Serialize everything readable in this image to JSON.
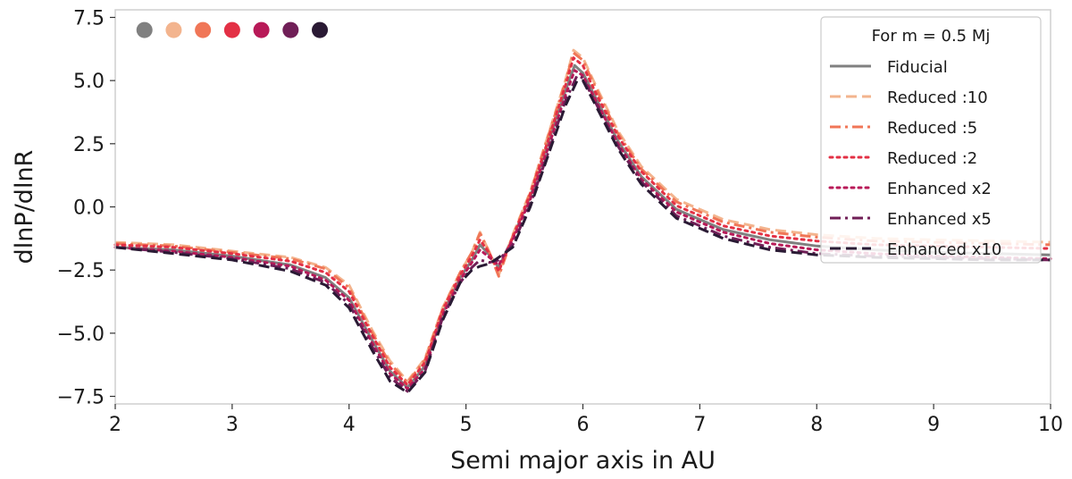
{
  "chart_data": {
    "type": "line",
    "title": "",
    "xlabel": "Semi major axis in AU",
    "ylabel": "dlnP/dlnR",
    "xlim": [
      2,
      10
    ],
    "ylim": [
      -7.8,
      7.8
    ],
    "xticks": [
      2,
      3,
      4,
      5,
      6,
      7,
      8,
      9,
      10
    ],
    "yticks": [
      -7.5,
      -5.0,
      -2.5,
      0.0,
      2.5,
      5.0,
      7.5
    ],
    "xtick_labels": [
      "2",
      "3",
      "4",
      "5",
      "6",
      "7",
      "8",
      "9",
      "10"
    ],
    "ytick_labels": [
      "−7.5",
      "−5.0",
      "−2.5",
      "0.0",
      "2.5",
      "5.0",
      "7.5"
    ],
    "grid": false,
    "legend": {
      "title": "For m = 0.5 Mj",
      "placement": "top-right"
    },
    "markers": {
      "y": 7.0,
      "x": [
        2.25,
        2.5,
        2.75,
        3.0,
        3.25,
        3.5,
        3.75
      ],
      "colors": [
        "#808080",
        "#f3b48e",
        "#f07657",
        "#e33045",
        "#b81a58",
        "#701f57",
        "#2a1a34"
      ]
    },
    "series": [
      {
        "name": "Fiducial",
        "color": "#808080",
        "dash": "solid",
        "x": [
          2.0,
          2.5,
          3.0,
          3.5,
          3.8,
          4.0,
          4.2,
          4.35,
          4.5,
          4.65,
          4.8,
          4.95,
          5.05,
          5.12,
          5.2,
          5.28,
          5.4,
          5.55,
          5.7,
          5.85,
          5.93,
          6.0,
          6.1,
          6.3,
          6.5,
          6.8,
          7.2,
          7.6,
          8.0,
          8.5,
          9.0,
          9.5,
          10.0
        ],
        "y": [
          -1.6,
          -1.7,
          -1.95,
          -2.3,
          -2.8,
          -3.6,
          -5.3,
          -6.5,
          -7.15,
          -6.3,
          -4.2,
          -2.8,
          -2.1,
          -1.5,
          -1.9,
          -2.4,
          -1.2,
          0.4,
          2.5,
          4.6,
          5.6,
          5.3,
          4.4,
          2.6,
          1.2,
          -0.1,
          -0.9,
          -1.3,
          -1.55,
          -1.7,
          -1.8,
          -1.85,
          -1.9
        ]
      },
      {
        "name": "Reduced :10",
        "color": "#f3b48e",
        "dash": "dashed",
        "x": [
          2.0,
          2.5,
          3.0,
          3.5,
          3.8,
          4.0,
          4.2,
          4.35,
          4.5,
          4.65,
          4.8,
          4.95,
          5.05,
          5.12,
          5.2,
          5.28,
          5.4,
          5.55,
          5.7,
          5.85,
          5.92,
          6.0,
          6.1,
          6.3,
          6.5,
          6.8,
          7.2,
          7.6,
          8.0,
          8.5,
          9.0,
          9.5,
          10.0
        ],
        "y": [
          -1.4,
          -1.5,
          -1.75,
          -2.0,
          -2.4,
          -3.1,
          -4.9,
          -6.1,
          -6.9,
          -6.0,
          -4.0,
          -2.6,
          -1.8,
          -1.0,
          -1.8,
          -2.7,
          -1.1,
          0.6,
          2.8,
          5.0,
          6.2,
          5.9,
          4.9,
          3.0,
          1.6,
          0.3,
          -0.5,
          -0.9,
          -1.1,
          -1.25,
          -1.3,
          -1.35,
          -1.4
        ]
      },
      {
        "name": "Reduced :5",
        "color": "#f07657",
        "dash": "dashdot",
        "x": [
          2.0,
          2.5,
          3.0,
          3.5,
          3.8,
          4.0,
          4.2,
          4.35,
          4.5,
          4.65,
          4.8,
          4.95,
          5.05,
          5.12,
          5.2,
          5.28,
          5.4,
          5.55,
          5.7,
          5.85,
          5.92,
          6.0,
          6.1,
          6.3,
          6.5,
          6.8,
          7.2,
          7.6,
          8.0,
          8.5,
          9.0,
          9.5,
          10.0
        ],
        "y": [
          -1.45,
          -1.55,
          -1.8,
          -2.05,
          -2.45,
          -3.2,
          -5.0,
          -6.2,
          -6.95,
          -6.05,
          -4.05,
          -2.6,
          -1.8,
          -1.05,
          -1.8,
          -2.75,
          -1.15,
          0.55,
          2.75,
          4.95,
          6.1,
          5.8,
          4.8,
          2.9,
          1.5,
          0.2,
          -0.6,
          -1.0,
          -1.2,
          -1.35,
          -1.4,
          -1.45,
          -1.5
        ]
      },
      {
        "name": "Reduced :2",
        "color": "#e33045",
        "dash": "dotted",
        "x": [
          2.0,
          2.5,
          3.0,
          3.5,
          3.8,
          4.0,
          4.2,
          4.35,
          4.5,
          4.65,
          4.8,
          4.95,
          5.05,
          5.12,
          5.2,
          5.28,
          5.4,
          5.55,
          5.7,
          5.85,
          5.92,
          6.0,
          6.1,
          6.3,
          6.5,
          6.8,
          7.2,
          7.6,
          8.0,
          8.5,
          9.0,
          9.5,
          10.0
        ],
        "y": [
          -1.5,
          -1.6,
          -1.85,
          -2.15,
          -2.6,
          -3.35,
          -5.1,
          -6.35,
          -7.05,
          -6.15,
          -4.1,
          -2.7,
          -1.95,
          -1.3,
          -1.85,
          -2.55,
          -1.2,
          0.5,
          2.6,
          4.8,
          5.9,
          5.6,
          4.6,
          2.8,
          1.4,
          0.05,
          -0.75,
          -1.15,
          -1.35,
          -1.5,
          -1.55,
          -1.6,
          -1.65
        ]
      },
      {
        "name": "Enhanced x2",
        "color": "#b81a58",
        "dash": "dotted",
        "x": [
          2.0,
          2.5,
          3.0,
          3.5,
          3.8,
          4.0,
          4.2,
          4.35,
          4.5,
          4.65,
          4.8,
          4.95,
          5.05,
          5.12,
          5.2,
          5.28,
          5.4,
          5.55,
          5.7,
          5.85,
          5.93,
          6.0,
          6.1,
          6.3,
          6.5,
          6.8,
          7.2,
          7.6,
          8.0,
          8.5,
          9.0,
          9.5,
          10.0
        ],
        "y": [
          -1.6,
          -1.75,
          -2.0,
          -2.35,
          -2.9,
          -3.7,
          -5.4,
          -6.6,
          -7.2,
          -6.4,
          -4.3,
          -2.9,
          -2.2,
          -1.7,
          -2.0,
          -2.3,
          -1.3,
          0.3,
          2.3,
          4.4,
          5.4,
          5.2,
          4.3,
          2.5,
          1.1,
          -0.2,
          -1.0,
          -1.45,
          -1.7,
          -1.85,
          -1.95,
          -2.0,
          -2.05
        ]
      },
      {
        "name": "Enhanced x5",
        "color": "#701f57",
        "dash": "dashdot",
        "x": [
          2.0,
          2.5,
          3.0,
          3.5,
          3.8,
          4.0,
          4.2,
          4.35,
          4.5,
          4.65,
          4.8,
          4.95,
          5.05,
          5.12,
          5.2,
          5.28,
          5.4,
          5.55,
          5.7,
          5.85,
          5.95,
          6.0,
          6.1,
          6.3,
          6.5,
          6.8,
          7.2,
          7.6,
          8.0,
          8.5,
          9.0,
          9.5,
          10.0
        ],
        "y": [
          -1.6,
          -1.8,
          -2.05,
          -2.45,
          -3.0,
          -3.85,
          -5.55,
          -6.75,
          -7.3,
          -6.5,
          -4.4,
          -3.0,
          -2.4,
          -2.1,
          -2.2,
          -2.1,
          -1.5,
          0.1,
          2.1,
          4.2,
          5.2,
          5.1,
          4.2,
          2.4,
          1.0,
          -0.35,
          -1.15,
          -1.6,
          -1.85,
          -1.95,
          -2.0,
          -2.05,
          -2.1
        ]
      },
      {
        "name": "Enhanced x10",
        "color": "#2a1a34",
        "dash": "dashed",
        "x": [
          2.0,
          2.5,
          3.0,
          3.5,
          3.8,
          4.0,
          4.2,
          4.35,
          4.5,
          4.65,
          4.8,
          4.95,
          5.05,
          5.12,
          5.2,
          5.28,
          5.4,
          5.55,
          5.7,
          5.85,
          5.95,
          6.0,
          6.1,
          6.3,
          6.5,
          6.8,
          7.2,
          7.6,
          8.0,
          8.5,
          9.0,
          9.5,
          10.0
        ],
        "y": [
          -1.6,
          -1.85,
          -2.1,
          -2.55,
          -3.1,
          -4.0,
          -5.7,
          -6.9,
          -7.35,
          -6.55,
          -4.5,
          -3.0,
          -2.5,
          -2.35,
          -2.25,
          -2.0,
          -1.6,
          0.0,
          2.0,
          4.0,
          5.0,
          5.0,
          4.1,
          2.3,
          0.9,
          -0.45,
          -1.25,
          -1.7,
          -1.9,
          -2.0,
          -2.05,
          -2.1,
          -2.1
        ]
      }
    ]
  }
}
